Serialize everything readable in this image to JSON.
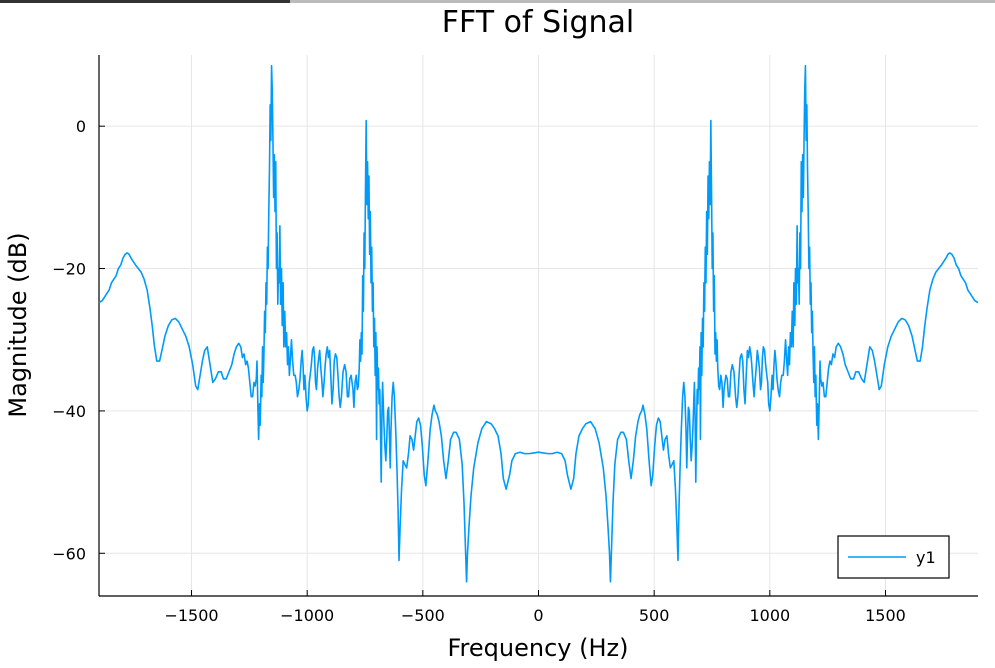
{
  "chart_data": {
    "type": "line",
    "title": "FFT of Signal",
    "xlabel": "Frequency (Hz)",
    "ylabel": "Magnitude (dB)",
    "xlim": [
      -1900,
      1900
    ],
    "ylim": [
      -66,
      10
    ],
    "xticks": [
      -1500,
      -1000,
      -500,
      0,
      500,
      1000,
      1500
    ],
    "xtick_labels": [
      "−1500",
      "−1000",
      "−500",
      "0",
      "500",
      "1000",
      "1500"
    ],
    "yticks": [
      0,
      -20,
      -40,
      -60
    ],
    "ytick_labels": [
      "0",
      "−20",
      "−40",
      "−60"
    ],
    "grid": true,
    "legend": {
      "position": "bottom-right",
      "entries": [
        "y1"
      ]
    },
    "series": [
      {
        "name": "y1",
        "color": "#009af9",
        "points": [
          [
            0,
            -45.8
          ],
          [
            20,
            -45.9
          ],
          [
            40,
            -46
          ],
          [
            60,
            -46
          ],
          [
            80,
            -45.8
          ],
          [
            100,
            -46
          ],
          [
            115,
            -47
          ],
          [
            125,
            -49
          ],
          [
            140,
            -51
          ],
          [
            152,
            -49.5
          ],
          [
            162,
            -46
          ],
          [
            175,
            -43.5
          ],
          [
            190,
            -42.5
          ],
          [
            205,
            -41.8
          ],
          [
            225,
            -41.5
          ],
          [
            245,
            -42.5
          ],
          [
            262,
            -44.5
          ],
          [
            280,
            -48
          ],
          [
            292,
            -52
          ],
          [
            300,
            -56
          ],
          [
            307,
            -60
          ],
          [
            311,
            -64
          ],
          [
            316,
            -59
          ],
          [
            322,
            -53
          ],
          [
            330,
            -47.5
          ],
          [
            342,
            -44
          ],
          [
            356,
            -43
          ],
          [
            367,
            -43
          ],
          [
            380,
            -44
          ],
          [
            390,
            -47
          ],
          [
            400,
            -49.5
          ],
          [
            410,
            -47
          ],
          [
            420,
            -43.5
          ],
          [
            430,
            -41.5
          ],
          [
            438,
            -40.5
          ],
          [
            446,
            -40
          ],
          [
            452,
            -39.2
          ],
          [
            460,
            -40.5
          ],
          [
            468,
            -42.5
          ],
          [
            478,
            -47
          ],
          [
            487,
            -50.5
          ],
          [
            494,
            -49
          ],
          [
            502,
            -45
          ],
          [
            510,
            -42
          ],
          [
            518,
            -41
          ],
          [
            526,
            -41.5
          ],
          [
            533,
            -43.5
          ],
          [
            540,
            -45.5
          ],
          [
            547,
            -44
          ],
          [
            555,
            -43.5
          ],
          [
            562,
            -46
          ],
          [
            570,
            -48
          ],
          [
            578,
            -47.5
          ],
          [
            585,
            -47
          ],
          [
            592,
            -51
          ],
          [
            598,
            -56
          ],
          [
            603,
            -61
          ],
          [
            607,
            -54
          ],
          [
            612,
            -48
          ],
          [
            617,
            -43
          ],
          [
            623,
            -38
          ],
          [
            628,
            -36
          ],
          [
            633,
            -38
          ],
          [
            638,
            -43
          ],
          [
            641,
            -48
          ],
          [
            644,
            -44
          ],
          [
            648,
            -39.5
          ],
          [
            652,
            -40
          ],
          [
            656,
            -44
          ],
          [
            660,
            -47
          ],
          [
            664,
            -45
          ],
          [
            668,
            -42
          ],
          [
            671,
            -39
          ],
          [
            674,
            -36
          ],
          [
            677,
            -41
          ],
          [
            680,
            -50
          ],
          [
            683,
            -43
          ],
          [
            686,
            -37
          ],
          [
            689,
            -39
          ],
          [
            692,
            -34
          ],
          [
            695,
            -37
          ],
          [
            698,
            -31
          ],
          [
            700,
            -44
          ],
          [
            703,
            -29
          ],
          [
            706,
            -35
          ],
          [
            709,
            -27
          ],
          [
            712,
            -31
          ],
          [
            715,
            -22
          ],
          [
            718,
            -26
          ],
          [
            721,
            -17
          ],
          [
            724,
            -22
          ],
          [
            727,
            -12
          ],
          [
            730,
            -18
          ],
          [
            733,
            -7
          ],
          [
            736,
            -13
          ],
          [
            739,
            -5
          ],
          [
            742,
            -11
          ],
          [
            745,
            0.8
          ],
          [
            748,
            -9
          ],
          [
            751,
            -20
          ],
          [
            754,
            -15
          ],
          [
            757,
            -26
          ],
          [
            760,
            -21
          ],
          [
            763,
            -32
          ],
          [
            766,
            -29
          ],
          [
            769,
            -33
          ],
          [
            772,
            -30
          ],
          [
            775,
            -34
          ],
          [
            779,
            -36.5
          ],
          [
            783,
            -37
          ],
          [
            788,
            -35
          ],
          [
            793,
            -36
          ],
          [
            798,
            -39.5
          ],
          [
            802,
            -37
          ],
          [
            806,
            -36
          ],
          [
            810,
            -35
          ],
          [
            816,
            -35.5
          ],
          [
            821,
            -38
          ],
          [
            826,
            -38
          ],
          [
            832,
            -34.5
          ],
          [
            838,
            -33.5
          ],
          [
            845,
            -34.5
          ],
          [
            852,
            -38
          ],
          [
            857,
            -39.5
          ],
          [
            862,
            -38
          ],
          [
            867,
            -35
          ],
          [
            872,
            -32.5
          ],
          [
            878,
            -32
          ],
          [
            883,
            -33
          ],
          [
            888,
            -37
          ],
          [
            893,
            -39
          ],
          [
            898,
            -35
          ],
          [
            903,
            -31.5
          ],
          [
            908,
            -32.5
          ],
          [
            913,
            -31
          ],
          [
            918,
            -32
          ],
          [
            922,
            -33.5
          ],
          [
            927,
            -36
          ],
          [
            932,
            -38
          ],
          [
            936,
            -36
          ],
          [
            941,
            -34
          ],
          [
            946,
            -31.5
          ],
          [
            950,
            -32.5
          ],
          [
            955,
            -34
          ],
          [
            960,
            -37
          ],
          [
            964,
            -36
          ],
          [
            968,
            -32.5
          ],
          [
            972,
            -31
          ],
          [
            977,
            -31.5
          ],
          [
            982,
            -33.5
          ],
          [
            987,
            -35
          ],
          [
            991,
            -36
          ],
          [
            995,
            -39
          ],
          [
            1000,
            -40
          ],
          [
            1005,
            -38
          ],
          [
            1010,
            -35
          ],
          [
            1014,
            -37
          ],
          [
            1018,
            -33.5
          ],
          [
            1022,
            -31.5
          ],
          [
            1026,
            -33
          ],
          [
            1031,
            -35.5
          ],
          [
            1036,
            -37
          ],
          [
            1042,
            -38
          ],
          [
            1047,
            -36
          ],
          [
            1052,
            -35
          ],
          [
            1058,
            -35
          ],
          [
            1063,
            -33
          ],
          [
            1068,
            -30
          ],
          [
            1073,
            -33
          ],
          [
            1077,
            -35
          ],
          [
            1081,
            -31
          ],
          [
            1085,
            -33.5
          ],
          [
            1089,
            -29
          ],
          [
            1093,
            -31
          ],
          [
            1097,
            -26
          ],
          [
            1101,
            -31
          ],
          [
            1104,
            -22
          ],
          [
            1108,
            -28
          ],
          [
            1111,
            -20
          ],
          [
            1115,
            -25
          ],
          [
            1118,
            -14
          ],
          [
            1121,
            -22
          ],
          [
            1124,
            -20
          ],
          [
            1127,
            -25
          ],
          [
            1130,
            -15
          ],
          [
            1133,
            -20
          ],
          [
            1136,
            -5
          ],
          [
            1139,
            -12
          ],
          [
            1142,
            -4
          ],
          [
            1145,
            -10
          ],
          [
            1148,
            -2
          ],
          [
            1151,
            5
          ],
          [
            1154,
            8.5
          ],
          [
            1157,
            -2
          ],
          [
            1160,
            3
          ],
          [
            1163,
            -6
          ],
          [
            1166,
            -12
          ],
          [
            1169,
            -20
          ],
          [
            1172,
            -17
          ],
          [
            1175,
            -25
          ],
          [
            1178,
            -22
          ],
          [
            1181,
            -29
          ],
          [
            1184,
            -26
          ],
          [
            1187,
            -32
          ],
          [
            1190,
            -36
          ],
          [
            1193,
            -31
          ],
          [
            1196,
            -38
          ],
          [
            1199,
            -35
          ],
          [
            1203,
            -42
          ],
          [
            1206,
            -39
          ],
          [
            1210,
            -44
          ],
          [
            1214,
            -38
          ],
          [
            1217,
            -33
          ],
          [
            1220,
            -35.5
          ],
          [
            1225,
            -36.5
          ],
          [
            1230,
            -36
          ],
          [
            1236,
            -38
          ],
          [
            1242,
            -38
          ],
          [
            1248,
            -36
          ],
          [
            1254,
            -34
          ],
          [
            1260,
            -33
          ],
          [
            1266,
            -33.5
          ],
          [
            1273,
            -32
          ],
          [
            1280,
            -32.5
          ],
          [
            1287,
            -31
          ],
          [
            1296,
            -30.5
          ],
          [
            1306,
            -31
          ],
          [
            1316,
            -32
          ],
          [
            1326,
            -33.5
          ],
          [
            1338,
            -34.5
          ],
          [
            1350,
            -35.5
          ],
          [
            1362,
            -35.5
          ],
          [
            1372,
            -34.5
          ],
          [
            1384,
            -34.5
          ],
          [
            1397,
            -35.5
          ],
          [
            1408,
            -36
          ],
          [
            1420,
            -33.5
          ],
          [
            1432,
            -31
          ],
          [
            1443,
            -31.5
          ],
          [
            1453,
            -33
          ],
          [
            1463,
            -35
          ],
          [
            1473,
            -37
          ],
          [
            1482,
            -36.5
          ],
          [
            1495,
            -33.5
          ],
          [
            1510,
            -31
          ],
          [
            1525,
            -29.5
          ],
          [
            1540,
            -28.5
          ],
          [
            1555,
            -27.5
          ],
          [
            1570,
            -27
          ],
          [
            1585,
            -27.2
          ],
          [
            1600,
            -28
          ],
          [
            1615,
            -29.5
          ],
          [
            1628,
            -31.5
          ],
          [
            1638,
            -33
          ],
          [
            1650,
            -33
          ],
          [
            1660,
            -31
          ],
          [
            1670,
            -28
          ],
          [
            1680,
            -25.5
          ],
          [
            1692,
            -23
          ],
          [
            1705,
            -21.5
          ],
          [
            1718,
            -20.5
          ],
          [
            1730,
            -20
          ],
          [
            1742,
            -19.5
          ],
          [
            1752,
            -19
          ],
          [
            1762,
            -18.5
          ],
          [
            1770,
            -18
          ],
          [
            1778,
            -17.8
          ],
          [
            1787,
            -18
          ],
          [
            1796,
            -18.5
          ],
          [
            1806,
            -19.5
          ],
          [
            1816,
            -20
          ],
          [
            1826,
            -21
          ],
          [
            1836,
            -21.5
          ],
          [
            1846,
            -22
          ],
          [
            1856,
            -23
          ],
          [
            1866,
            -23.5
          ],
          [
            1876,
            -24
          ],
          [
            1886,
            -24.5
          ],
          [
            1900,
            -24.8
          ]
        ]
      }
    ]
  }
}
